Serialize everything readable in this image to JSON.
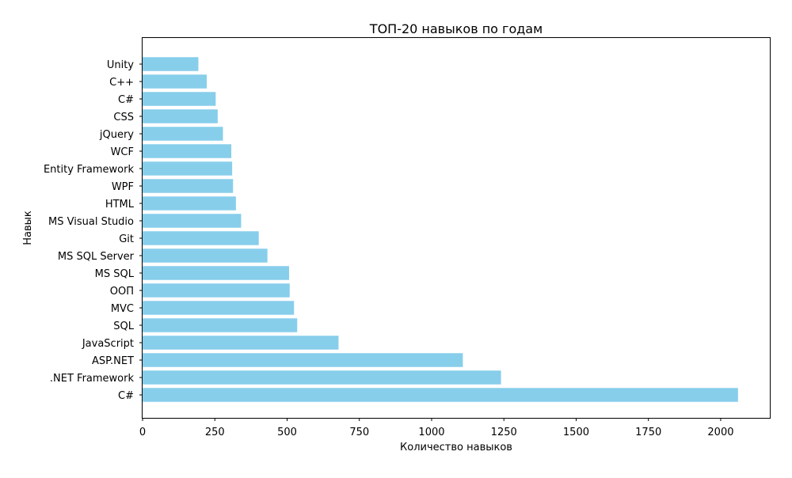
{
  "chart_data": {
    "type": "bar",
    "orientation": "horizontal",
    "title": "ТОП-20 навыков по годам",
    "xlabel": "Количество навыков",
    "ylabel": "Навык",
    "xlim": [
      0,
      2170
    ],
    "x_ticks": [
      0,
      250,
      500,
      750,
      1000,
      1250,
      1500,
      1750,
      2000
    ],
    "grid": false,
    "bar_color": "#87ceeb",
    "categories": [
      "C#",
      ".NET Framework",
      "ASP.NET",
      "JavaScript",
      "SQL",
      "MVC",
      "ООП",
      "MS SQL",
      "MS SQL Server",
      "Git",
      "MS Visual Studio",
      "HTML",
      "WPF",
      "Entity Framework",
      "WCF",
      "jQuery",
      "CSS",
      "C#",
      "C++",
      "Unity"
    ],
    "values": [
      2060,
      1240,
      1108,
      678,
      535,
      524,
      509,
      507,
      432,
      402,
      341,
      323,
      313,
      310,
      307,
      278,
      260,
      253,
      222,
      193
    ]
  }
}
